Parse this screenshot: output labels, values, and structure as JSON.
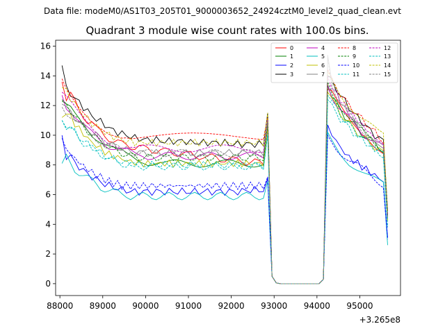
{
  "chart_data": {
    "type": "line",
    "suptitle": "Data file: modeM0/AS1T03_205T01_9000003652_24924cztM0_level2_quad_clean.evt",
    "title": "Quadrant 3 module wise count rates with 100.0s bins.",
    "xlabel": "",
    "ylabel": "",
    "x_offset_label": "+3.265e8",
    "x_offset": 326500000,
    "xlim": [
      87900,
      95950
    ],
    "ylim": [
      -0.8,
      16.4
    ],
    "xticks": [
      88000,
      89000,
      90000,
      91000,
      92000,
      93000,
      94000,
      95000
    ],
    "xtick_labels": [
      "88000",
      "89000",
      "90000",
      "91000",
      "92000",
      "93000",
      "94000",
      "95000"
    ],
    "yticks": [
      0,
      2,
      4,
      6,
      8,
      10,
      12,
      14,
      16
    ],
    "ytick_labels": [
      "0",
      "2",
      "4",
      "6",
      "8",
      "10",
      "12",
      "14",
      "16"
    ],
    "legend_position": "upper-right",
    "legend_columns": 4,
    "segments": [
      {
        "x_start": 88050,
        "x_end": 92850,
        "step": 100
      },
      {
        "x_start": 92850,
        "x_end": 94150,
        "step": 100
      },
      {
        "x_start": 94150,
        "x_end": 95550,
        "step": 100
      }
    ],
    "series": [
      {
        "name": "0",
        "color": "#ff0000",
        "dash": "solid",
        "seg1": [
          13.6,
          12.5,
          12.8,
          12.2,
          11.6,
          11.3,
          11.0,
          10.9,
          10.4,
          10.2,
          10.0,
          9.8,
          9.6,
          9.5,
          9.4,
          9.4,
          9.3,
          9.2,
          9.2,
          9.1,
          9.1,
          9.0,
          9.0,
          9.0,
          8.9,
          8.9,
          8.8,
          8.8,
          8.8,
          8.7,
          8.7,
          8.6,
          8.6,
          8.6,
          8.5,
          8.5,
          8.5,
          8.4,
          8.4,
          8.4,
          8.3,
          8.3,
          8.3,
          8.2,
          8.2,
          8.2,
          8.1,
          8.1,
          10.6
        ],
        "seg3": [
          13.1,
          12.8,
          12.3,
          11.9,
          11.5,
          11.1,
          10.8,
          10.5,
          10.2,
          10.0,
          9.7,
          9.4,
          9.2,
          9.0,
          4.6
        ]
      },
      {
        "name": "1",
        "color": "#008000",
        "dash": "solid",
        "seg1": [
          12.3,
          11.9,
          11.7,
          11.3,
          11.0,
          10.7,
          10.4,
          10.1,
          9.9,
          9.7,
          9.5,
          9.3,
          9.1,
          8.9,
          8.8,
          8.6,
          8.5,
          8.4,
          8.3,
          8.3,
          8.2,
          8.2,
          8.2,
          8.2,
          8.1,
          8.1,
          8.1,
          8.1,
          8.1,
          8.1,
          8.1,
          8.1,
          8.1,
          8.1,
          8.1,
          8.1,
          8.1,
          8.1,
          8.1,
          8.1,
          8.1,
          8.1,
          8.1,
          8.1,
          8.1,
          8.1,
          8.1,
          8.1,
          10.7
        ],
        "seg3": [
          13.3,
          12.6,
          12.1,
          11.7,
          11.3,
          11.0,
          10.7,
          10.4,
          10.1,
          9.9,
          9.7,
          9.4,
          9.2,
          9.0,
          4.3
        ]
      },
      {
        "name": "2",
        "color": "#0000ff",
        "dash": "solid",
        "seg1": [
          10.0,
          8.6,
          8.6,
          8.1,
          7.9,
          7.6,
          7.4,
          7.2,
          7.0,
          6.9,
          6.7,
          6.6,
          6.5,
          6.4,
          6.3,
          6.3,
          6.2,
          6.2,
          6.2,
          6.2,
          6.2,
          6.2,
          6.2,
          6.2,
          6.2,
          6.2,
          6.2,
          6.2,
          6.2,
          6.2,
          6.2,
          6.2,
          6.2,
          6.2,
          6.2,
          6.2,
          6.2,
          6.2,
          6.2,
          6.2,
          6.2,
          6.2,
          6.2,
          6.3,
          6.3,
          6.3,
          6.3,
          6.3,
          7.1
        ],
        "seg3": [
          10.7,
          10.1,
          9.6,
          9.2,
          8.8,
          8.5,
          8.3,
          8.1,
          7.9,
          7.7,
          7.5,
          7.3,
          7.1,
          6.9,
          3.1
        ]
      },
      {
        "name": "3",
        "color": "#000000",
        "dash": "solid",
        "seg1": [
          14.7,
          13.1,
          12.8,
          12.5,
          12.2,
          11.9,
          11.6,
          11.3,
          11.1,
          10.9,
          10.7,
          10.5,
          10.3,
          10.2,
          10.1,
          10.0,
          9.9,
          9.8,
          9.8,
          9.7,
          9.7,
          9.7,
          9.7,
          9.6,
          9.6,
          9.6,
          9.6,
          9.6,
          9.6,
          9.6,
          9.5,
          9.5,
          9.5,
          9.5,
          9.5,
          9.5,
          9.5,
          9.5,
          9.5,
          9.4,
          9.4,
          9.4,
          9.4,
          9.4,
          9.4,
          9.4,
          9.4,
          9.4,
          11.5
        ],
        "seg3": [
          14.0,
          13.6,
          13.1,
          12.7,
          12.3,
          11.9,
          11.5,
          11.2,
          10.9,
          10.6,
          10.3,
          10.0,
          9.8,
          9.6,
          4.9
        ]
      },
      {
        "name": "4",
        "color": "#bf00bf",
        "dash": "solid",
        "seg1": [
          12.7,
          12.0,
          11.7,
          11.3,
          10.9,
          10.6,
          10.3,
          10.1,
          9.9,
          9.7,
          9.5,
          9.3,
          9.2,
          9.1,
          9.0,
          8.9,
          8.8,
          8.7,
          8.7,
          8.7,
          8.6,
          8.6,
          8.6,
          8.6,
          8.6,
          8.6,
          8.6,
          8.6,
          8.6,
          8.6,
          8.6,
          8.6,
          8.6,
          8.6,
          8.6,
          8.6,
          8.6,
          8.6,
          8.6,
          8.6,
          8.6,
          8.6,
          8.6,
          8.6,
          8.6,
          8.6,
          8.6,
          8.6,
          10.9
        ],
        "seg3": [
          13.4,
          12.7,
          12.2,
          11.8,
          11.4,
          11.1,
          10.8,
          10.5,
          10.2,
          10.0,
          9.8,
          9.5,
          9.3,
          9.1,
          4.5
        ]
      },
      {
        "name": "5",
        "color": "#00bfbf",
        "dash": "solid",
        "seg1": [
          8.1,
          8.5,
          8.1,
          7.7,
          7.5,
          7.3,
          7.1,
          6.9,
          6.7,
          6.5,
          6.4,
          6.3,
          6.2,
          6.1,
          6.0,
          6.0,
          5.9,
          5.9,
          5.9,
          5.9,
          5.9,
          5.9,
          5.9,
          5.9,
          5.9,
          5.9,
          5.9,
          5.9,
          5.9,
          5.9,
          5.9,
          5.9,
          5.9,
          5.9,
          5.9,
          5.9,
          5.9,
          5.9,
          5.9,
          5.9,
          5.9,
          5.9,
          5.9,
          5.9,
          5.9,
          5.9,
          5.9,
          5.9,
          6.9
        ],
        "seg3": [
          10.2,
          9.6,
          9.2,
          8.8,
          8.5,
          8.2,
          8.0,
          7.8,
          7.6,
          7.4,
          7.2,
          7.0,
          6.8,
          6.6,
          2.6
        ]
      },
      {
        "name": "6",
        "color": "#bfbf00",
        "dash": "solid",
        "seg1": [
          11.2,
          11.6,
          11.2,
          10.8,
          10.4,
          10.1,
          9.8,
          9.5,
          9.3,
          9.1,
          8.9,
          8.7,
          8.6,
          8.5,
          8.4,
          8.3,
          8.2,
          8.2,
          8.1,
          8.1,
          8.1,
          8.1,
          8.1,
          8.1,
          8.1,
          8.1,
          8.1,
          8.1,
          8.1,
          8.1,
          8.1,
          8.1,
          8.1,
          8.1,
          8.1,
          8.1,
          8.1,
          8.1,
          8.1,
          8.1,
          8.1,
          8.1,
          8.1,
          8.1,
          8.1,
          8.1,
          8.1,
          8.1,
          10.6
        ],
        "seg3": [
          12.9,
          12.4,
          11.9,
          11.5,
          11.1,
          10.8,
          10.5,
          10.2,
          9.9,
          9.7,
          9.5,
          9.2,
          9.0,
          8.8,
          4.2
        ]
      },
      {
        "name": "7",
        "color": "#808080",
        "dash": "solid",
        "seg1": [
          12.1,
          11.8,
          11.5,
          11.2,
          10.9,
          10.6,
          10.4,
          10.2,
          10.0,
          9.8,
          9.6,
          9.4,
          9.3,
          9.2,
          9.1,
          9.0,
          8.9,
          8.9,
          8.8,
          8.8,
          8.8,
          8.8,
          8.8,
          8.8,
          8.8,
          8.8,
          8.8,
          8.8,
          8.8,
          8.8,
          8.8,
          8.8,
          8.8,
          8.8,
          8.8,
          8.8,
          8.8,
          8.8,
          8.8,
          8.8,
          8.8,
          8.8,
          8.8,
          8.8,
          8.8,
          8.8,
          8.8,
          8.8,
          11.1
        ],
        "seg3": [
          15.4,
          13.8,
          12.9,
          12.3,
          11.8,
          11.4,
          11.0,
          10.7,
          10.4,
          10.1,
          9.8,
          9.6,
          9.3,
          9.1,
          4.4
        ]
      },
      {
        "name": "8",
        "color": "#ff0000",
        "dash": "dashed",
        "seg1": [
          13.8,
          13.2,
          12.8,
          12.4,
          12.0,
          11.7,
          11.4,
          11.1,
          10.9,
          10.7,
          10.5,
          10.3,
          10.2,
          10.1,
          10.0,
          10.0,
          9.9,
          9.9,
          9.9,
          9.9,
          9.9,
          9.9,
          9.9,
          9.9,
          9.9,
          9.9,
          9.9,
          9.9,
          9.9,
          9.9,
          9.9,
          9.9,
          9.9,
          9.9,
          9.9,
          9.9,
          9.9,
          9.9,
          9.9,
          9.9,
          9.9,
          9.9,
          9.9,
          9.9,
          9.9,
          9.9,
          9.9,
          9.9,
          11.3
        ],
        "seg3": [
          14.4,
          13.6,
          13.2,
          12.8,
          12.4,
          12.0,
          11.7,
          11.4,
          11.1,
          10.8,
          10.5,
          10.2,
          9.9,
          9.6,
          4.7
        ]
      },
      {
        "name": "9",
        "color": "#008000",
        "dash": "dashed",
        "seg1": [
          12.4,
          12.1,
          11.7,
          11.3,
          10.9,
          10.6,
          10.3,
          10.0,
          9.8,
          9.6,
          9.4,
          9.2,
          9.0,
          8.9,
          8.8,
          8.7,
          8.6,
          8.6,
          8.5,
          8.5,
          8.5,
          8.5,
          8.5,
          8.5,
          8.5,
          8.5,
          8.5,
          8.5,
          8.5,
          8.5,
          8.5,
          8.5,
          8.5,
          8.5,
          8.5,
          8.5,
          8.5,
          8.5,
          8.5,
          8.5,
          8.5,
          8.5,
          8.5,
          8.5,
          8.5,
          8.5,
          8.5,
          8.5,
          10.8
        ],
        "seg3": [
          13.6,
          12.9,
          12.4,
          12.0,
          11.6,
          11.2,
          10.9,
          10.6,
          10.3,
          10.0,
          9.8,
          9.5,
          9.3,
          9.1,
          4.5
        ]
      },
      {
        "name": "10",
        "color": "#0000ff",
        "dash": "dashed",
        "seg1": [
          9.8,
          9.0,
          8.8,
          8.4,
          8.2,
          7.9,
          7.7,
          7.5,
          7.3,
          7.2,
          7.0,
          6.9,
          6.8,
          6.7,
          6.6,
          6.6,
          6.6,
          6.6,
          6.6,
          6.6,
          6.6,
          6.6,
          6.6,
          6.6,
          6.6,
          6.6,
          6.6,
          6.6,
          6.6,
          6.6,
          6.6,
          6.6,
          6.6,
          6.6,
          6.6,
          6.6,
          6.6,
          6.6,
          6.6,
          6.6,
          6.6,
          6.6,
          6.6,
          6.6,
          6.6,
          6.6,
          6.6,
          6.6,
          7.2
        ],
        "seg3": [
          10.0,
          9.6,
          9.2,
          8.9,
          8.6,
          8.3,
          8.1,
          7.9,
          7.7,
          7.5,
          7.3,
          7.1,
          6.9,
          6.7,
          3.0
        ]
      },
      {
        "name": "11",
        "color": "#00bfbf",
        "dash": "dashed",
        "seg1": [
          11.0,
          10.5,
          10.4,
          10.1,
          9.8,
          9.5,
          9.3,
          9.1,
          8.9,
          8.7,
          8.6,
          8.4,
          8.3,
          8.2,
          8.1,
          8.0,
          8.0,
          7.9,
          7.9,
          7.9,
          7.9,
          7.9,
          7.9,
          7.9,
          7.9,
          7.9,
          7.9,
          7.9,
          7.9,
          7.9,
          7.9,
          7.9,
          7.9,
          7.9,
          7.9,
          7.9,
          7.9,
          7.9,
          7.9,
          7.9,
          7.9,
          7.9,
          7.9,
          7.9,
          7.9,
          7.9,
          7.9,
          7.9,
          10.0
        ],
        "seg3": [
          12.4,
          11.9,
          11.5,
          11.1,
          10.8,
          10.5,
          10.2,
          9.9,
          9.7,
          9.5,
          9.3,
          9.0,
          8.8,
          8.6,
          3.8
        ]
      },
      {
        "name": "12",
        "color": "#bf00bf",
        "dash": "dashed",
        "seg1": [
          12.9,
          12.5,
          12.1,
          11.7,
          11.3,
          11.0,
          10.7,
          10.4,
          10.2,
          10.0,
          9.8,
          9.6,
          9.5,
          9.4,
          9.3,
          9.2,
          9.2,
          9.1,
          9.1,
          9.1,
          9.1,
          9.1,
          9.1,
          9.1,
          9.1,
          9.1,
          9.1,
          9.1,
          9.1,
          9.1,
          9.1,
          9.1,
          9.1,
          9.1,
          9.1,
          9.1,
          9.1,
          9.1,
          9.1,
          9.1,
          9.1,
          9.1,
          9.1,
          9.1,
          9.1,
          9.1,
          9.1,
          9.1,
          11.0
        ],
        "seg3": [
          14.0,
          13.3,
          12.8,
          12.4,
          12.0,
          11.6,
          11.3,
          11.0,
          10.7,
          10.4,
          10.1,
          9.8,
          9.6,
          9.4,
          4.6
        ]
      },
      {
        "name": "13",
        "color": "#00bfbf",
        "dash": "dashed",
        "seg1": [
          11.0,
          10.7,
          10.5,
          10.2,
          9.9,
          9.6,
          9.4,
          9.2,
          9.0,
          8.8,
          8.6,
          8.5,
          8.4,
          8.3,
          8.2,
          8.1,
          8.1,
          8.0,
          8.0,
          8.0,
          8.0,
          8.0,
          8.0,
          8.0,
          8.0,
          8.0,
          8.0,
          8.0,
          8.0,
          8.0,
          8.0,
          8.0,
          8.0,
          8.0,
          8.0,
          8.0,
          8.0,
          8.0,
          8.0,
          8.0,
          8.0,
          8.0,
          8.0,
          8.0,
          8.0,
          8.0,
          8.0,
          8.0,
          10.1
        ],
        "seg3": [
          12.7,
          12.2,
          11.8,
          11.4,
          11.0,
          10.7,
          10.4,
          10.1,
          9.9,
          9.6,
          9.4,
          9.1,
          8.9,
          8.7,
          3.9
        ]
      },
      {
        "name": "14",
        "color": "#bfbf00",
        "dash": "dashed",
        "seg1": [
          13.2,
          12.9,
          12.5,
          12.1,
          11.7,
          11.4,
          11.1,
          10.8,
          10.6,
          10.4,
          10.2,
          10.0,
          9.9,
          9.8,
          9.7,
          9.6,
          9.6,
          9.5,
          9.5,
          9.5,
          9.5,
          9.5,
          9.5,
          9.5,
          9.5,
          9.5,
          9.5,
          9.5,
          9.5,
          9.5,
          9.5,
          9.5,
          9.5,
          9.5,
          9.5,
          9.5,
          9.5,
          9.5,
          9.5,
          9.5,
          9.5,
          9.5,
          9.5,
          9.5,
          9.5,
          9.5,
          9.5,
          9.5,
          11.5
        ],
        "seg3": [
          14.3,
          13.7,
          13.2,
          12.8,
          12.4,
          12.1,
          11.8,
          11.5,
          11.2,
          11.0,
          10.7,
          10.4,
          10.1,
          9.9,
          4.8
        ]
      },
      {
        "name": "15",
        "color": "#808080",
        "dash": "dashed",
        "seg1": [
          11.9,
          11.6,
          11.3,
          11.0,
          10.7,
          10.4,
          10.2,
          10.0,
          9.8,
          9.6,
          9.4,
          9.3,
          9.2,
          9.1,
          9.0,
          8.9,
          8.9,
          8.8,
          8.8,
          8.8,
          8.8,
          8.8,
          8.8,
          8.8,
          8.8,
          8.8,
          8.8,
          8.8,
          8.8,
          8.8,
          8.8,
          8.8,
          8.8,
          8.8,
          8.8,
          8.8,
          8.8,
          8.8,
          8.8,
          8.8,
          8.8,
          8.8,
          8.8,
          8.8,
          8.8,
          8.8,
          8.8,
          8.8,
          10.9
        ],
        "seg3": [
          15.2,
          13.5,
          12.8,
          12.2,
          11.8,
          11.4,
          11.0,
          10.7,
          10.4,
          10.1,
          9.8,
          9.6,
          9.3,
          9.1,
          4.4
        ]
      }
    ]
  }
}
